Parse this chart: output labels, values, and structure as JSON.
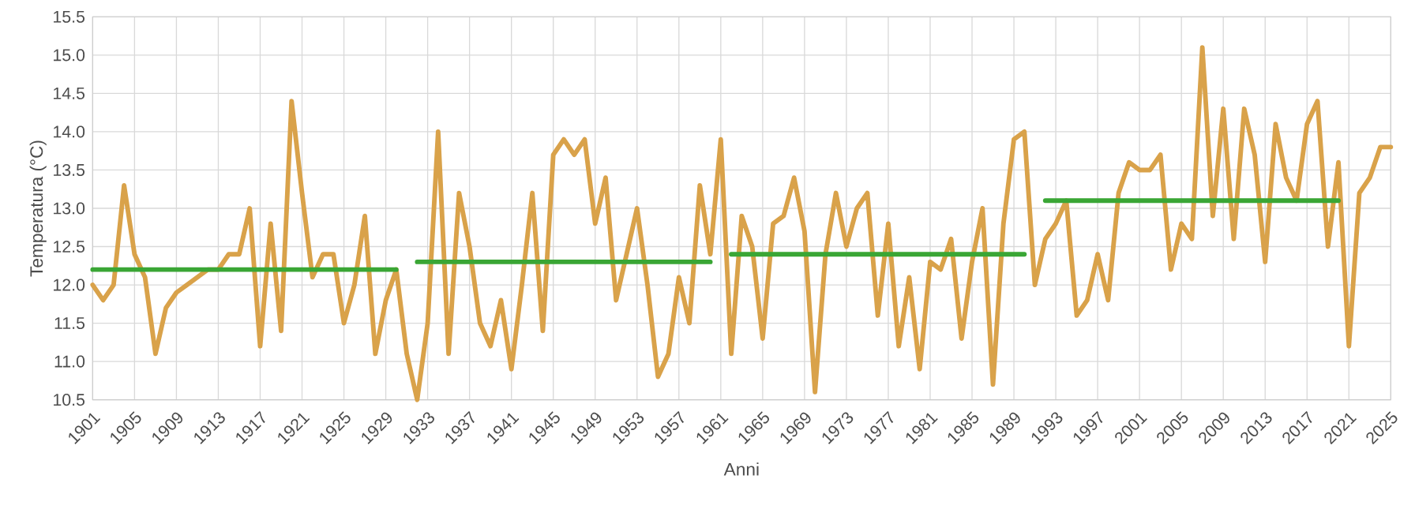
{
  "chart_data": {
    "type": "line",
    "xlabel": "Anni",
    "ylabel": "Temperatura (°C)",
    "xlim": [
      1901,
      2025
    ],
    "ylim": [
      10.5,
      15.5
    ],
    "xticks": [
      1901,
      1905,
      1909,
      1913,
      1917,
      1921,
      1925,
      1929,
      1933,
      1937,
      1941,
      1945,
      1949,
      1953,
      1957,
      1961,
      1965,
      1969,
      1973,
      1977,
      1981,
      1985,
      1989,
      1993,
      1997,
      2001,
      2005,
      2009,
      2013,
      2017,
      2021,
      2025
    ],
    "yticks": [
      {
        "value": 10.5,
        "label": "10.5"
      },
      {
        "value": 11,
        "label": "11.0"
      },
      {
        "value": 11.5,
        "label": "11.5"
      },
      {
        "value": 12,
        "label": "12.0"
      },
      {
        "value": 12.5,
        "label": "12.5"
      },
      {
        "value": 13,
        "label": "13.0"
      },
      {
        "value": 13.5,
        "label": "13.5"
      },
      {
        "value": 14,
        "label": "14.0"
      },
      {
        "value": 14.5,
        "label": "14.5"
      },
      {
        "value": 15,
        "label": "15.0"
      },
      {
        "value": 15.5,
        "label": "15.5"
      }
    ],
    "grid": true,
    "marker": "none",
    "line_style": "solid",
    "series": [
      {
        "color": "#d9a24a",
        "x": [
          1901,
          1902,
          1903,
          1904,
          1905,
          1906,
          1907,
          1908,
          1909,
          1910,
          1911,
          1912,
          1913,
          1914,
          1915,
          1916,
          1917,
          1918,
          1919,
          1920,
          1921,
          1922,
          1923,
          1924,
          1925,
          1926,
          1927,
          1928,
          1929,
          1930,
          1931,
          1932,
          1933,
          1934,
          1935,
          1936,
          1937,
          1938,
          1939,
          1940,
          1941,
          1942,
          1943,
          1944,
          1945,
          1946,
          1947,
          1948,
          1949,
          1950,
          1951,
          1952,
          1953,
          1954,
          1955,
          1956,
          1957,
          1958,
          1959,
          1960,
          1961,
          1962,
          1963,
          1964,
          1965,
          1966,
          1967,
          1968,
          1969,
          1970,
          1971,
          1972,
          1973,
          1974,
          1975,
          1976,
          1977,
          1978,
          1979,
          1980,
          1981,
          1982,
          1983,
          1984,
          1985,
          1986,
          1987,
          1988,
          1989,
          1990,
          1991,
          1992,
          1993,
          1994,
          1995,
          1996,
          1997,
          1998,
          1999,
          2000,
          2001,
          2002,
          2003,
          2004,
          2005,
          2006,
          2007,
          2008,
          2009,
          2010,
          2011,
          2012,
          2013,
          2014,
          2015,
          2016,
          2017,
          2018,
          2019,
          2020,
          2021,
          2022,
          2023,
          2024,
          2025
        ],
        "values": [
          12.0,
          11.8,
          12.0,
          13.3,
          12.4,
          12.1,
          11.1,
          11.7,
          11.9,
          12.0,
          12.1,
          12.2,
          12.2,
          12.4,
          12.4,
          13.0,
          11.2,
          12.8,
          11.4,
          14.4,
          13.2,
          12.1,
          12.4,
          12.4,
          11.5,
          12.0,
          12.9,
          11.1,
          11.8,
          12.2,
          11.1,
          10.5,
          11.5,
          14.0,
          11.1,
          13.2,
          12.5,
          11.5,
          11.2,
          11.8,
          10.9,
          12.0,
          13.2,
          11.4,
          13.7,
          13.9,
          13.7,
          13.9,
          12.8,
          13.4,
          11.8,
          12.4,
          13.0,
          12.0,
          10.8,
          11.1,
          12.1,
          11.5,
          13.3,
          12.4,
          13.9,
          11.1,
          12.9,
          12.5,
          11.3,
          12.8,
          12.9,
          13.4,
          12.7,
          10.6,
          12.4,
          13.2,
          12.5,
          13.0,
          13.2,
          11.6,
          12.8,
          11.2,
          12.1,
          10.9,
          12.3,
          12.2,
          12.6,
          11.3,
          12.3,
          13.0,
          10.7,
          12.8,
          13.9,
          14.0,
          12.0,
          12.6,
          12.8,
          13.1,
          11.6,
          11.8,
          12.4,
          11.8,
          13.2,
          13.6,
          13.5,
          13.5,
          13.7,
          12.2,
          12.8,
          12.6,
          15.1,
          12.9,
          14.3,
          12.6,
          14.3,
          13.7,
          12.3,
          14.1,
          13.4,
          13.1,
          14.1,
          14.4,
          12.5,
          13.6,
          11.2,
          13.2,
          13.4,
          13.8,
          13.8
        ]
      },
      {
        "type": "step",
        "color": "#3aa635",
        "x": [
          1901,
          1930
        ],
        "values": [
          12.2,
          12.2
        ]
      },
      {
        "type": "step",
        "color": "#3aa635",
        "x": [
          1932,
          1960
        ],
        "values": [
          12.3,
          12.3
        ]
      },
      {
        "type": "step",
        "color": "#3aa635",
        "x": [
          1962,
          1990
        ],
        "values": [
          12.4,
          12.4
        ]
      },
      {
        "type": "step",
        "color": "#3aa635",
        "x": [
          1992,
          2020
        ],
        "values": [
          13.1,
          13.1
        ]
      }
    ]
  }
}
